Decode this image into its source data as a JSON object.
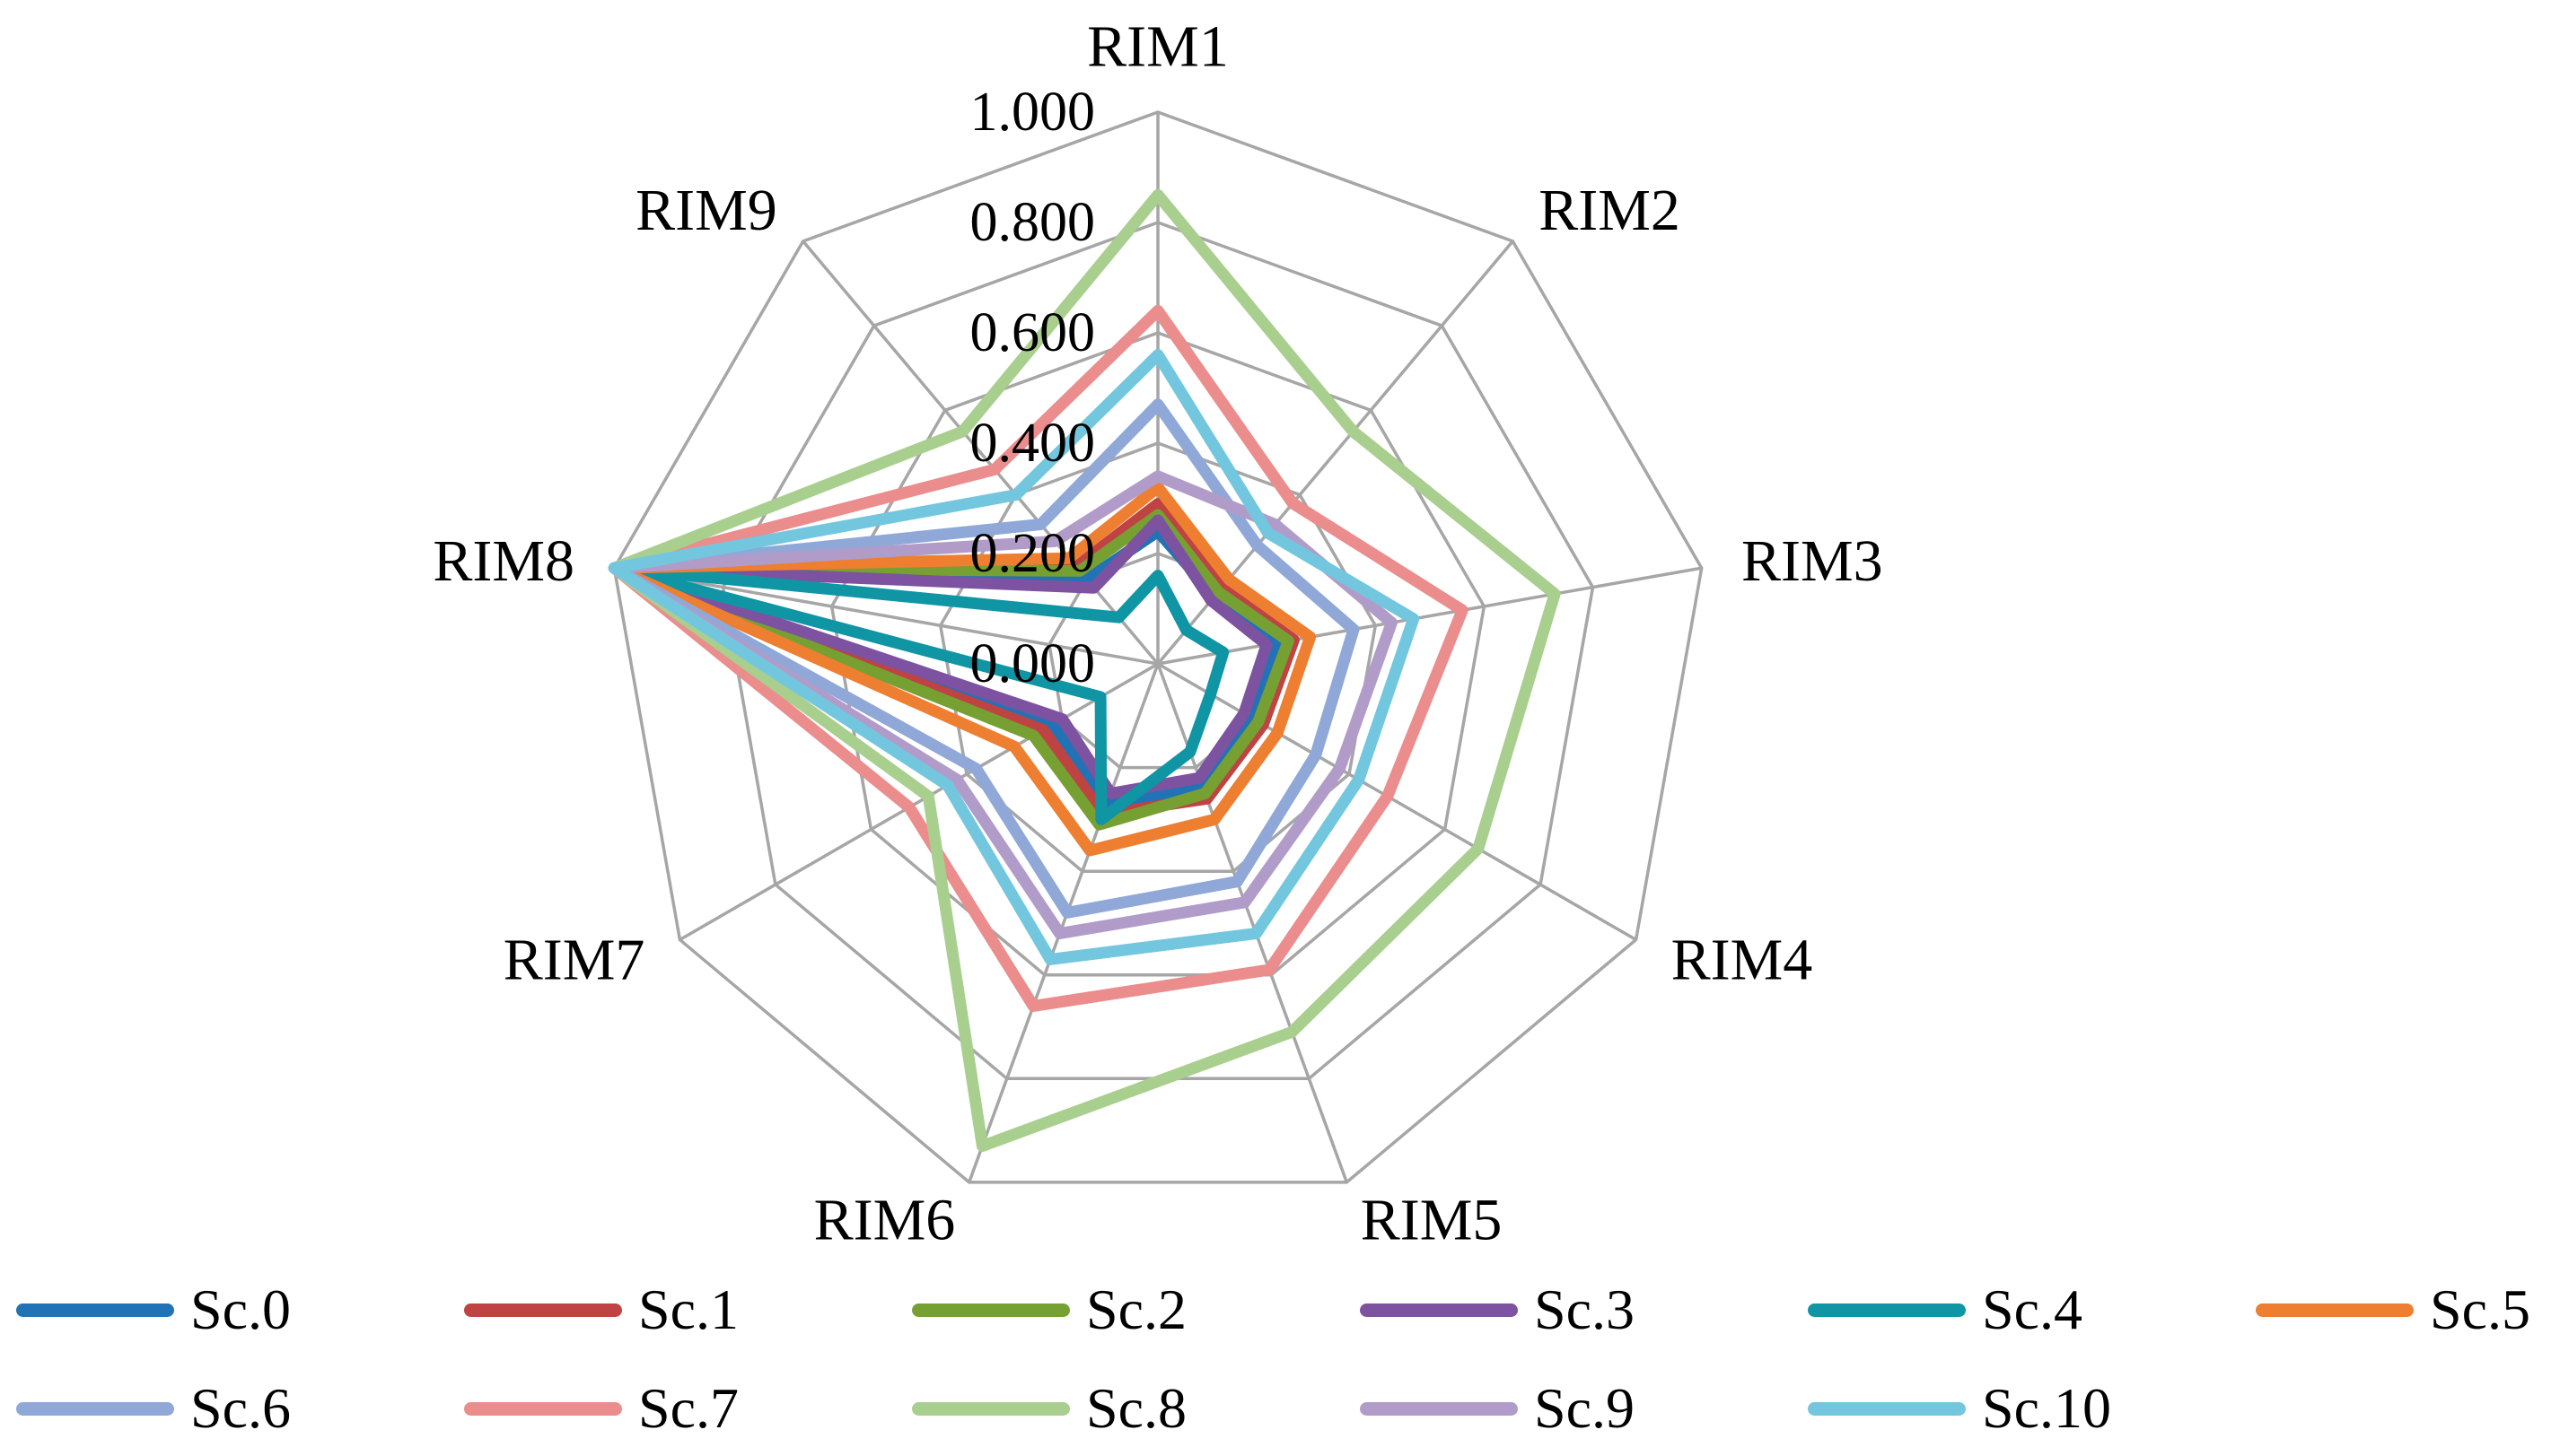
{
  "chart_data": {
    "type": "radar",
    "categories": [
      "RIM1",
      "RIM2",
      "RIM3",
      "RIM4",
      "RIM5",
      "RIM6",
      "RIM7",
      "RIM8",
      "RIM9"
    ],
    "ticks": [
      "1.000",
      "0.800",
      "0.600",
      "0.400",
      "0.200",
      "0.000"
    ],
    "tick_values": [
      1.0,
      0.8,
      0.6,
      0.4,
      0.2,
      0.0
    ],
    "rmin": 0,
    "rmax": 1,
    "grid": true,
    "grid_rings": 5,
    "grid_color": "#a6a6a6",
    "legend_position": "bottom",
    "series": [
      {
        "name": "Sc.0",
        "color": "#2273b5",
        "values": [
          0.24,
          0.16,
          0.22,
          0.2,
          0.24,
          0.27,
          0.22,
          1.0,
          0.2
        ]
      },
      {
        "name": "Sc.1",
        "color": "#be4342",
        "values": [
          0.29,
          0.18,
          0.25,
          0.22,
          0.26,
          0.29,
          0.24,
          1.0,
          0.23
        ]
      },
      {
        "name": "Sc.2",
        "color": "#77a033",
        "values": [
          0.27,
          0.17,
          0.24,
          0.21,
          0.25,
          0.31,
          0.26,
          1.0,
          0.22
        ]
      },
      {
        "name": "Sc.3",
        "color": "#7d52a0",
        "values": [
          0.26,
          0.15,
          0.2,
          0.18,
          0.22,
          0.25,
          0.2,
          1.0,
          0.18
        ]
      },
      {
        "name": "Sc.4",
        "color": "#1095a5",
        "values": [
          0.16,
          0.08,
          0.12,
          0.11,
          0.17,
          0.3,
          0.12,
          1.0,
          0.11
        ]
      },
      {
        "name": "Sc.5",
        "color": "#ee7e30",
        "values": [
          0.32,
          0.2,
          0.28,
          0.25,
          0.3,
          0.36,
          0.3,
          1.0,
          0.25
        ]
      },
      {
        "name": "Sc.6",
        "color": "#8fa8d8",
        "values": [
          0.47,
          0.28,
          0.36,
          0.33,
          0.42,
          0.48,
          0.38,
          1.0,
          0.33
        ]
      },
      {
        "name": "Sc.7",
        "color": "#ea8d8c",
        "values": [
          0.64,
          0.38,
          0.56,
          0.48,
          0.59,
          0.66,
          0.52,
          1.0,
          0.46
        ]
      },
      {
        "name": "Sc.8",
        "color": "#a9cf8f",
        "values": [
          0.85,
          0.55,
          0.73,
          0.67,
          0.71,
          0.93,
          0.48,
          1.0,
          0.55
        ]
      },
      {
        "name": "Sc.9",
        "color": "#b19cc9",
        "values": [
          0.34,
          0.33,
          0.43,
          0.38,
          0.46,
          0.52,
          0.42,
          1.0,
          0.29
        ]
      },
      {
        "name": "Sc.10",
        "color": "#72c7df",
        "values": [
          0.56,
          0.31,
          0.47,
          0.42,
          0.52,
          0.57,
          0.44,
          1.0,
          0.4
        ]
      }
    ]
  }
}
